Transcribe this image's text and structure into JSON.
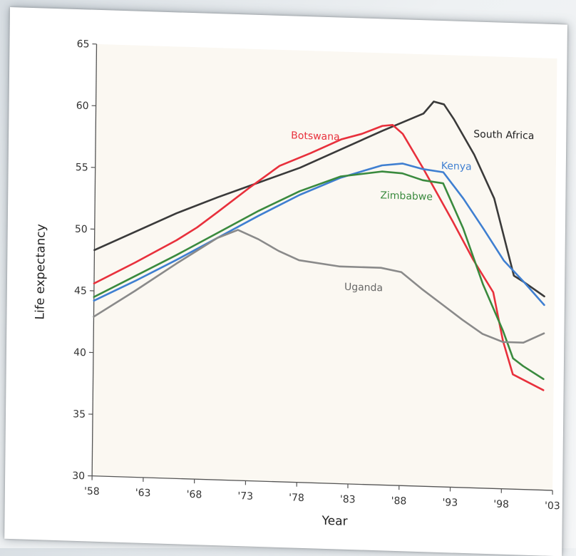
{
  "chart_data": {
    "type": "line",
    "xlabel": "Year",
    "ylabel": "Life expectancy",
    "xlim": [
      1958,
      2003
    ],
    "ylim": [
      30,
      65
    ],
    "x_ticks": [
      1958,
      1963,
      1968,
      1973,
      1978,
      1983,
      1988,
      1993,
      1998,
      2003
    ],
    "x_tick_labels": [
      "'58",
      "'63",
      "'68",
      "'73",
      "'78",
      "'83",
      "'88",
      "'93",
      "'98",
      "'03"
    ],
    "y_ticks": [
      30,
      35,
      40,
      45,
      50,
      55,
      60,
      65
    ],
    "y_tick_labels": [
      "30",
      "35",
      "40",
      "45",
      "50",
      "55",
      "60",
      "65"
    ],
    "grid": false,
    "legend": "none",
    "series": [
      {
        "name": "South Africa",
        "color": "#3a3a3a",
        "x": [
          1958,
          1962,
          1966,
          1970,
          1974,
          1978,
          1982,
          1986,
          1990,
          1991,
          1992,
          1993,
          1995,
          1997,
          1999,
          2000,
          2002
        ],
        "y": [
          48.3,
          49.9,
          51.5,
          52.9,
          54.2,
          55.5,
          57.1,
          58.7,
          60.2,
          61.2,
          61.0,
          59.8,
          57.0,
          53.5,
          47.3,
          46.8,
          45.7
        ]
      },
      {
        "name": "Botswana",
        "color": "#e8303c",
        "x": [
          1958,
          1962,
          1966,
          1968,
          1970,
          1973,
          1976,
          1979,
          1982,
          1984,
          1986,
          1987,
          1988,
          1990,
          1993,
          1995,
          1997,
          1998,
          1999,
          2000,
          2002
        ],
        "y": [
          45.6,
          47.4,
          49.3,
          50.4,
          51.7,
          53.7,
          55.6,
          56.7,
          57.9,
          58.4,
          59.1,
          59.2,
          58.5,
          55.8,
          51.5,
          48.5,
          45.9,
          42.0,
          39.3,
          38.9,
          38.1
        ]
      },
      {
        "name": "Kenya",
        "color": "#3f7fd1",
        "x": [
          1958,
          1962,
          1966,
          1970,
          1974,
          1978,
          1982,
          1986,
          1988,
          1990,
          1992,
          1994,
          1996,
          1998,
          2000,
          2002
        ],
        "y": [
          44.2,
          45.9,
          47.7,
          49.6,
          51.5,
          53.3,
          54.8,
          55.9,
          56.1,
          55.7,
          55.5,
          53.4,
          51.0,
          48.5,
          46.8,
          45.0
        ]
      },
      {
        "name": "Zimbabwe",
        "color": "#3a8a3e",
        "x": [
          1958,
          1962,
          1966,
          1970,
          1974,
          1978,
          1982,
          1986,
          1988,
          1990,
          1992,
          1994,
          1996,
          1998,
          1999,
          2000,
          2002
        ],
        "y": [
          44.5,
          46.3,
          48.1,
          50.0,
          51.9,
          53.6,
          54.9,
          55.4,
          55.3,
          54.8,
          54.6,
          51.0,
          46.5,
          42.8,
          40.6,
          40.0,
          39.0
        ]
      },
      {
        "name": "Uganda",
        "color": "#8a8a8a",
        "x": [
          1958,
          1962,
          1966,
          1970,
          1972,
          1974,
          1976,
          1978,
          1982,
          1986,
          1988,
          1990,
          1992,
          1994,
          1996,
          1998,
          2000,
          2002
        ],
        "y": [
          42.9,
          45.1,
          47.4,
          49.6,
          50.3,
          49.6,
          48.7,
          48.0,
          47.6,
          47.6,
          47.3,
          46.0,
          44.8,
          43.6,
          42.5,
          41.9,
          41.9,
          42.7
        ]
      }
    ]
  },
  "labels": {
    "south_africa": "South Africa",
    "botswana": "Botswana",
    "kenya": "Kenya",
    "zimbabwe": "Zimbabwe",
    "uganda": "Uganda"
  }
}
